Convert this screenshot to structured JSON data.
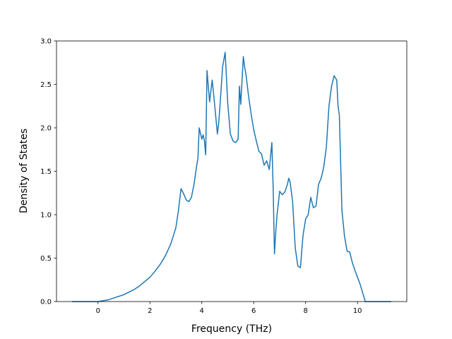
{
  "chart_data": {
    "type": "line",
    "title": "",
    "xlabel": "Frequency (THz)",
    "ylabel": "Density of States",
    "xlim": [
      -1.6,
      11.9
    ],
    "ylim": [
      0.0,
      3.0
    ],
    "xticks": [
      0,
      2,
      4,
      6,
      8,
      10
    ],
    "xtick_labels": [
      "0",
      "2",
      "4",
      "6",
      "8",
      "10"
    ],
    "yticks": [
      0.0,
      0.5,
      1.0,
      1.5,
      2.0,
      2.5,
      3.0
    ],
    "ytick_labels": [
      "0.0",
      "0.5",
      "1.0",
      "1.5",
      "2.0",
      "2.5",
      "3.0"
    ],
    "grid": false,
    "legend": "none",
    "series": [
      {
        "color": "#1f77b4",
        "x": [
          -1.0,
          -0.5,
          0.0,
          0.2,
          0.4,
          0.6,
          0.8,
          1.0,
          1.2,
          1.4,
          1.6,
          1.8,
          2.0,
          2.2,
          2.4,
          2.6,
          2.8,
          3.0,
          3.1,
          3.2,
          3.3,
          3.4,
          3.5,
          3.6,
          3.7,
          3.8,
          3.85,
          3.9,
          4.0,
          4.05,
          4.1,
          4.15,
          4.2,
          4.3,
          4.4,
          4.5,
          4.6,
          4.65,
          4.7,
          4.8,
          4.9,
          5.0,
          5.1,
          5.2,
          5.3,
          5.4,
          5.45,
          5.5,
          5.6,
          5.65,
          5.7,
          5.8,
          5.9,
          6.0,
          6.1,
          6.2,
          6.3,
          6.4,
          6.5,
          6.6,
          6.7,
          6.75,
          6.8,
          6.85,
          6.9,
          7.0,
          7.1,
          7.2,
          7.3,
          7.35,
          7.4,
          7.5,
          7.6,
          7.7,
          7.8,
          7.9,
          8.0,
          8.1,
          8.2,
          8.3,
          8.4,
          8.5,
          8.6,
          8.7,
          8.8,
          8.9,
          9.0,
          9.1,
          9.2,
          9.25,
          9.3,
          9.35,
          9.4,
          9.5,
          9.6,
          9.7,
          9.8,
          9.9,
          10.0,
          10.1,
          10.2,
          10.3,
          10.4,
          10.6,
          11.0,
          11.3
        ],
        "y": [
          0.0,
          0.0,
          0.0,
          0.01,
          0.02,
          0.04,
          0.06,
          0.08,
          0.11,
          0.14,
          0.18,
          0.23,
          0.28,
          0.35,
          0.43,
          0.53,
          0.66,
          0.85,
          1.05,
          1.3,
          1.24,
          1.17,
          1.15,
          1.2,
          1.35,
          1.56,
          1.65,
          2.0,
          1.87,
          1.92,
          1.85,
          1.69,
          2.66,
          2.3,
          2.55,
          2.25,
          1.93,
          2.05,
          2.25,
          2.7,
          2.87,
          2.28,
          1.93,
          1.85,
          1.83,
          1.87,
          2.48,
          2.27,
          2.82,
          2.7,
          2.62,
          2.37,
          2.16,
          1.98,
          1.85,
          1.73,
          1.7,
          1.57,
          1.62,
          1.52,
          1.83,
          1.3,
          0.55,
          0.8,
          1.0,
          1.27,
          1.23,
          1.26,
          1.35,
          1.42,
          1.38,
          1.15,
          0.62,
          0.41,
          0.39,
          0.76,
          0.95,
          1.0,
          1.2,
          1.08,
          1.1,
          1.35,
          1.42,
          1.55,
          1.78,
          2.25,
          2.48,
          2.6,
          2.55,
          2.25,
          2.15,
          1.6,
          1.05,
          0.75,
          0.58,
          0.57,
          0.45,
          0.36,
          0.28,
          0.2,
          0.1,
          0.0,
          0.0,
          0.0,
          0.0,
          0.0
        ]
      }
    ]
  }
}
